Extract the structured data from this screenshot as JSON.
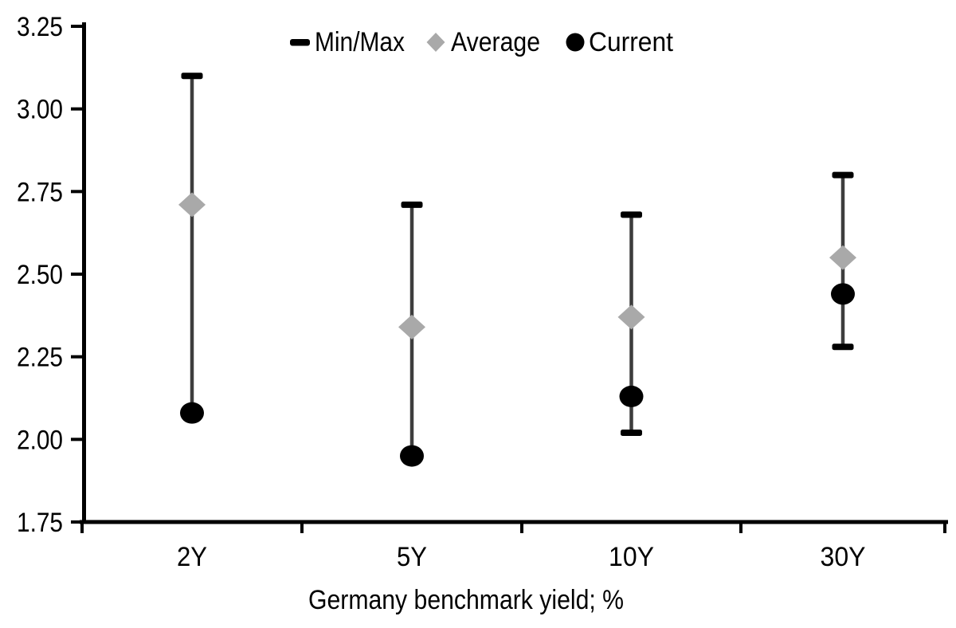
{
  "chart_data": {
    "type": "range-dot",
    "title": "",
    "xlabel": "Germany benchmark yield; %",
    "ylabel": "",
    "categories": [
      "2Y",
      "5Y",
      "10Y",
      "30Y"
    ],
    "series": [
      {
        "name": "Min/Max",
        "marker": "dash",
        "min": [
          2.08,
          1.95,
          2.02,
          2.28
        ],
        "max": [
          3.1,
          2.71,
          2.68,
          2.8
        ]
      },
      {
        "name": "Average",
        "marker": "diamond",
        "values": [
          2.71,
          2.34,
          2.37,
          2.55
        ]
      },
      {
        "name": "Current",
        "marker": "circle",
        "values": [
          2.08,
          1.95,
          2.13,
          2.44
        ]
      }
    ],
    "ylim": [
      1.75,
      3.25
    ],
    "ytick_step": 0.25,
    "yticks": [
      "1.75",
      "2.00",
      "2.25",
      "2.50",
      "2.75",
      "3.00",
      "3.25"
    ],
    "grid": false,
    "legend_position": "top-center",
    "colors": {
      "background": "#ffffff",
      "text": "#000000",
      "axis": "#000000",
      "range_line": "#3d3d3d",
      "minmax_cap": "#000000",
      "average_fill": "#a9a9a9",
      "current_fill": "#000000"
    }
  }
}
